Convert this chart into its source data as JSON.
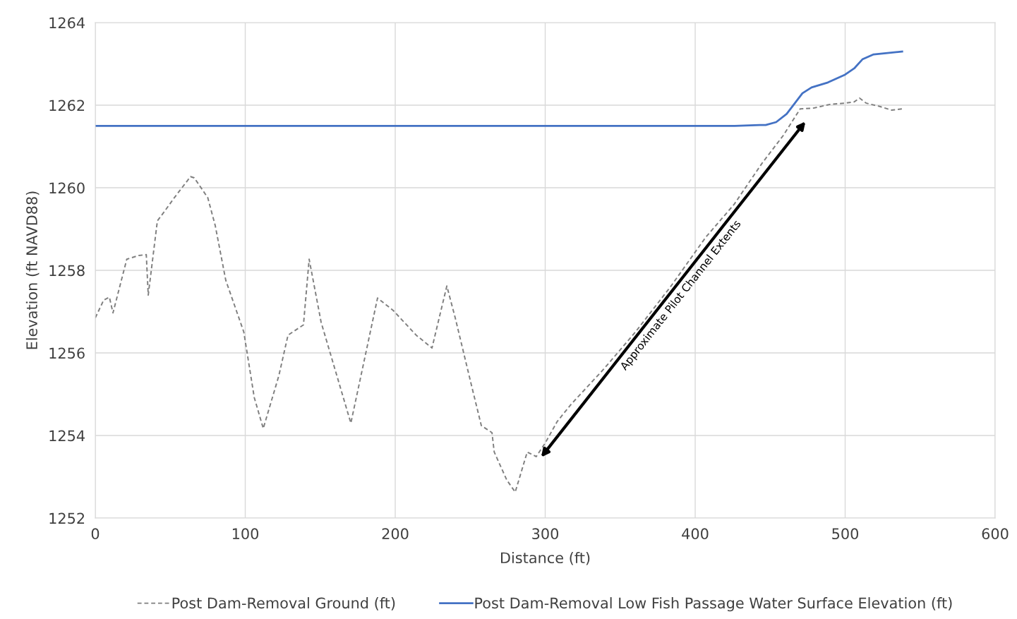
{
  "chart_data": {
    "type": "line",
    "xlabel": "Distance (ft)",
    "ylabel": "Elevation (ft NAVD88)",
    "xlim": [
      0,
      600
    ],
    "xticks": [
      0,
      100,
      200,
      300,
      400,
      500,
      600
    ],
    "ylim": [
      1252,
      1264
    ],
    "yticks": [
      1252,
      1254,
      1256,
      1258,
      1260,
      1262,
      1264
    ],
    "grid": true,
    "legend": "bottom",
    "series": [
      {
        "name": "Post Dam-Removal Ground (ft)",
        "color": "#7f7f7f",
        "line_style": "dashed",
        "x": [
          0,
          5.6,
          9.4,
          11.8,
          21,
          29,
          34,
          35.3,
          41.4,
          46,
          52.7,
          63.5,
          66,
          75,
          80,
          87,
          99,
          106,
          112,
          122.4,
          128.5,
          138.8,
          142.6,
          150.6,
          170.4,
          188.2,
          198.6,
          214,
          224.5,
          234.4,
          240,
          250.4,
          257.4,
          264.5,
          266,
          274.4,
          280,
          288,
          294,
          300.2,
          308,
          317.6,
          338.8,
          360,
          383.5,
          407,
          426,
          444.7,
          458.8,
          470,
          479,
          490,
          500,
          506,
          509.6,
          514,
          523,
          531,
          538
        ],
        "values": [
          1256.85,
          1257.28,
          1257.35,
          1256.97,
          1258.27,
          1258.36,
          1258.38,
          1257.4,
          1259.2,
          1259.42,
          1259.76,
          1260.27,
          1260.24,
          1259.76,
          1259.08,
          1257.76,
          1256.51,
          1254.92,
          1254.17,
          1255.45,
          1256.43,
          1256.68,
          1258.27,
          1256.74,
          1254.3,
          1257.33,
          1257.03,
          1256.43,
          1256.12,
          1257.62,
          1256.85,
          1255.28,
          1254.24,
          1254.07,
          1253.6,
          1252.92,
          1252.63,
          1253.6,
          1253.49,
          1253.83,
          1254.34,
          1254.77,
          1255.6,
          1256.5,
          1257.6,
          1258.8,
          1259.6,
          1260.6,
          1261.27,
          1261.91,
          1261.93,
          1262.02,
          1262.05,
          1262.08,
          1262.17,
          1262.05,
          1261.97,
          1261.88,
          1261.91
        ]
      },
      {
        "name": "Post Dam-Removal Low Fish Passage Water Surface Elevation (ft)",
        "color": "#4472c4",
        "line_style": "solid",
        "x": [
          0,
          426.4,
          443,
          447,
          454,
          461,
          471.5,
          477.6,
          488.5,
          500,
          506,
          511.5,
          519,
          538
        ],
        "values": [
          1261.5,
          1261.5,
          1261.52,
          1261.52,
          1261.59,
          1261.79,
          1262.29,
          1262.43,
          1262.55,
          1262.74,
          1262.89,
          1263.11,
          1263.23,
          1263.3
        ]
      }
    ],
    "annotations": [
      {
        "text": "Approximate Pilot Channel Extents",
        "x": 385.4,
        "y": 1257.54
      }
    ]
  }
}
